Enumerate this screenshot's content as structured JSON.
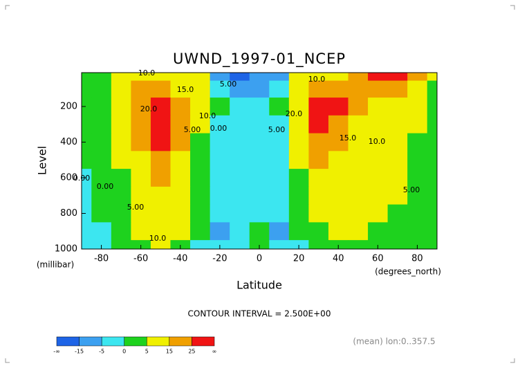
{
  "chart_data": {
    "type": "contour",
    "title": "UWND_1997-01_NCEP",
    "y_label": "Level",
    "y_unit": "(millibar)",
    "x_label": "Latitude",
    "x_unit": "(degrees_north)",
    "note": "CONTOUR INTERVAL = 2.500E+00",
    "footer": "(mean) lon:0..357.5",
    "xlim": [
      -90,
      90
    ],
    "ylim": [
      1000,
      10
    ],
    "xticks": [
      -80,
      -60,
      -40,
      -20,
      0,
      20,
      40,
      60,
      80
    ],
    "yticks": [
      200,
      400,
      600,
      800,
      1000
    ],
    "x": [
      -90,
      -80,
      -70,
      -60,
      -50,
      -40,
      -30,
      -20,
      -10,
      0,
      10,
      20,
      30,
      40,
      50,
      60,
      70,
      80,
      90
    ],
    "y": [
      10,
      100,
      200,
      300,
      400,
      500,
      600,
      700,
      800,
      900,
      1000
    ],
    "z": [
      [
        3,
        4,
        6,
        12,
        14,
        12,
        5,
        -8,
        -16,
        -14,
        -10,
        5,
        10,
        12,
        18,
        28,
        30,
        20,
        5
      ],
      [
        3,
        4,
        8,
        15,
        18,
        14,
        6,
        -2,
        -6,
        -8,
        -4,
        6,
        18,
        20,
        16,
        18,
        18,
        12,
        4
      ],
      [
        2,
        3,
        8,
        20,
        28,
        20,
        8,
        0,
        -3,
        -4,
        0,
        12,
        30,
        25,
        15,
        12,
        10,
        6,
        3
      ],
      [
        1,
        2,
        7,
        20,
        28,
        20,
        6,
        -1,
        -3,
        -4,
        -1,
        10,
        28,
        22,
        14,
        11,
        9,
        5,
        2
      ],
      [
        1,
        2,
        6,
        17,
        26,
        16,
        4,
        -1,
        -3,
        -4,
        -2,
        7,
        22,
        18,
        12,
        10,
        8,
        4,
        1
      ],
      [
        0,
        1,
        5,
        14,
        20,
        12,
        3,
        -1,
        -3,
        -3,
        -2,
        5,
        16,
        14,
        10,
        8,
        7,
        4,
        1
      ],
      [
        -1,
        1,
        4,
        12,
        16,
        10,
        2,
        -2,
        -3,
        -3,
        -2,
        3,
        12,
        11,
        8,
        7,
        6,
        3,
        1
      ],
      [
        -2,
        0,
        3,
        10,
        14,
        8,
        2,
        -2,
        -4,
        -3,
        -3,
        2,
        9,
        9,
        7,
        6,
        5,
        3,
        0
      ],
      [
        -2,
        0,
        2,
        8,
        12,
        6,
        1,
        -5,
        -3,
        -2,
        -5,
        1,
        6,
        7,
        6,
        5,
        4,
        2,
        0
      ],
      [
        -1,
        -1,
        1,
        6,
        10,
        5,
        0,
        -6,
        -2,
        1,
        -6,
        0,
        4,
        6,
        5,
        4,
        3,
        1,
        0
      ],
      [
        -1,
        -1,
        0,
        3,
        7,
        3,
        -1,
        -5,
        -2,
        0,
        -5,
        -1,
        2,
        4,
        3,
        2,
        1,
        0,
        0
      ]
    ],
    "colorbar": {
      "bounds": [
        -15,
        -5,
        0,
        5,
        15,
        25
      ],
      "low_label": "-∞",
      "high_label": "∞",
      "colors": [
        "#1e64e6",
        "#3ca0f0",
        "#3ce6f0",
        "#1ed21e",
        "#f0f000",
        "#f0a000",
        "#f01414"
      ]
    },
    "contour_labels": [
      "10.0",
      "15.0",
      "5.00",
      "20.0",
      "10.0",
      "5.00",
      "0.00",
      "0.00",
      "0.00",
      "5.00",
      "10.0",
      "10.0",
      "20.0",
      "5.00",
      "15.0",
      "10.0",
      "5.00"
    ]
  }
}
